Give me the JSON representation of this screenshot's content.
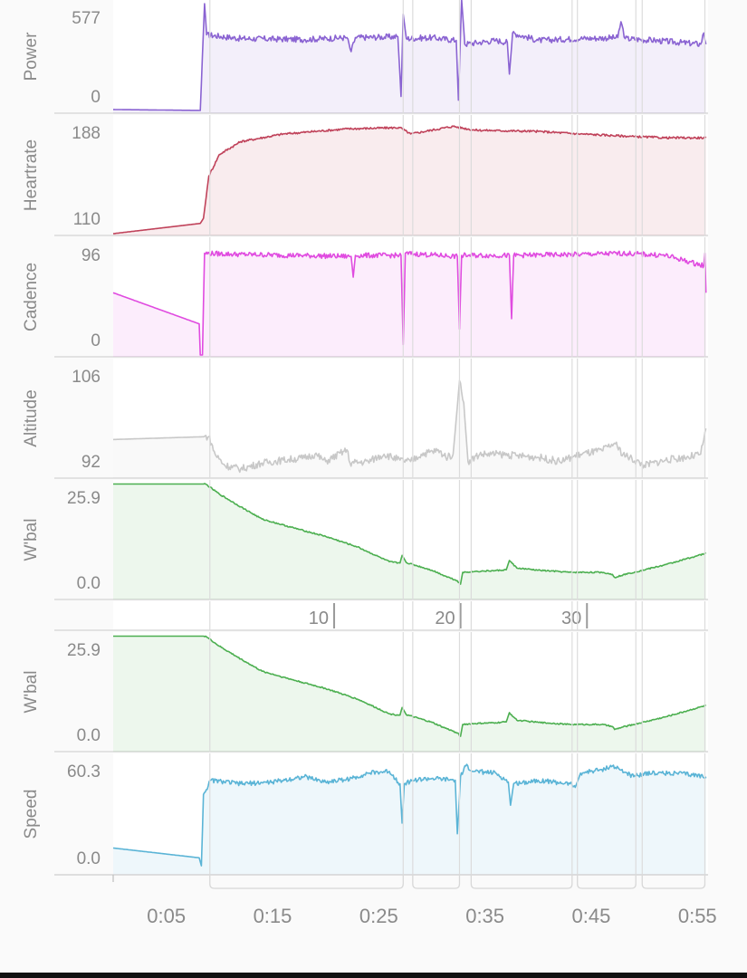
{
  "colors": {
    "power": "#8a63d2",
    "heartrate": "#c0425a",
    "cadence": "#e04be0",
    "altitude": "#c8c8c8",
    "wbal": "#4caf50",
    "speed": "#5ab4d6",
    "axis_text": "#8a8a8a",
    "grid": "#d9d9d9"
  },
  "chart_data": {
    "type": "line",
    "x_axis": {
      "unit": "elapsed time",
      "range": [
        0,
        56
      ],
      "ticks": [
        {
          "x": 5,
          "label": "0:05"
        },
        {
          "x": 15,
          "label": "0:15"
        },
        {
          "x": 25,
          "label": "0:25"
        },
        {
          "x": 35,
          "label": "0:35"
        },
        {
          "x": 45,
          "label": "0:45"
        },
        {
          "x": 55,
          "label": "0:55"
        }
      ]
    },
    "interval_markers": [
      9.1,
      27.3,
      28.2,
      32.6,
      33.7,
      43.2,
      43.7,
      49.2,
      49.8,
      55.7
    ],
    "middle_axis": {
      "range": [
        0,
        56
      ],
      "ticks": [
        {
          "x": 20.8,
          "label": "10"
        },
        {
          "x": 32.7,
          "label": "20"
        },
        {
          "x": 44.6,
          "label": "30"
        }
      ]
    },
    "panels": [
      {
        "id": "power",
        "label": "Power",
        "y_range": [
          0,
          577
        ],
        "y_ticks": [
          "577",
          "0"
        ],
        "fill": true,
        "series": [
          [
            0,
            10
          ],
          [
            8.2,
            5
          ],
          [
            8.6,
            577
          ],
          [
            8.8,
            410
          ],
          [
            12,
            390
          ],
          [
            18,
            385
          ],
          [
            22,
            395
          ],
          [
            22.4,
            320
          ],
          [
            22.8,
            395
          ],
          [
            26.8,
            400
          ],
          [
            27.1,
            80
          ],
          [
            27.3,
            520
          ],
          [
            27.6,
            390
          ],
          [
            30,
            395
          ],
          [
            32.3,
            380
          ],
          [
            32.5,
            60
          ],
          [
            32.8,
            600
          ],
          [
            33.1,
            360
          ],
          [
            36,
            380
          ],
          [
            37.1,
            370
          ],
          [
            37.3,
            200
          ],
          [
            37.6,
            420
          ],
          [
            40,
            380
          ],
          [
            44,
            390
          ],
          [
            47.5,
            395
          ],
          [
            47.8,
            480
          ],
          [
            48.2,
            390
          ],
          [
            51,
            380
          ],
          [
            55.3,
            360
          ],
          [
            55.6,
            420
          ],
          [
            55.8,
            360
          ]
        ],
        "noise": 16
      },
      {
        "id": "heartrate",
        "label": "Heartrate",
        "y_range": [
          110,
          200
        ],
        "y_ticks": [
          "188",
          "110"
        ],
        "fill": true,
        "series": [
          [
            0,
            110
          ],
          [
            8.2,
            118
          ],
          [
            8.5,
            122
          ],
          [
            9,
            155
          ],
          [
            10,
            172
          ],
          [
            12,
            182
          ],
          [
            16,
            188
          ],
          [
            22,
            192
          ],
          [
            27,
            193
          ],
          [
            28,
            188
          ],
          [
            32,
            194
          ],
          [
            34,
            191
          ],
          [
            40,
            190
          ],
          [
            44,
            188
          ],
          [
            49,
            186
          ],
          [
            52,
            185
          ],
          [
            55.8,
            185
          ]
        ],
        "noise": 0.8
      },
      {
        "id": "cadence",
        "label": "Cadence",
        "y_range": [
          0,
          110
        ],
        "y_ticks": [
          "96",
          "0"
        ],
        "fill": true,
        "series": [
          [
            0,
            60
          ],
          [
            8.1,
            30
          ],
          [
            8.2,
            0
          ],
          [
            8.4,
            0
          ],
          [
            8.6,
            98
          ],
          [
            12,
            97
          ],
          [
            22.4,
            95
          ],
          [
            22.6,
            75
          ],
          [
            22.8,
            96
          ],
          [
            27.1,
            96
          ],
          [
            27.3,
            10
          ],
          [
            27.5,
            98
          ],
          [
            32.4,
            95
          ],
          [
            32.6,
            25
          ],
          [
            32.8,
            96
          ],
          [
            37.3,
            96
          ],
          [
            37.5,
            35
          ],
          [
            37.7,
            96
          ],
          [
            44,
            97
          ],
          [
            48,
            98
          ],
          [
            52,
            96
          ],
          [
            55.6,
            86
          ],
          [
            55.7,
            98
          ],
          [
            55.8,
            60
          ]
        ],
        "noise": 2.4
      },
      {
        "id": "altitude",
        "label": "Altitude",
        "y_range": [
          91,
          106.5
        ],
        "y_ticks": [
          "106",
          "92"
        ],
        "fill": true,
        "series": [
          [
            0,
            96
          ],
          [
            9,
            96.4
          ],
          [
            9.6,
            94
          ],
          [
            10.5,
            92.5
          ],
          [
            12,
            92
          ],
          [
            14,
            92.8
          ],
          [
            16,
            93.2
          ],
          [
            18,
            93.5
          ],
          [
            19,
            94
          ],
          [
            20,
            93
          ],
          [
            22,
            94.6
          ],
          [
            22.3,
            92.8
          ],
          [
            24,
            93
          ],
          [
            25.5,
            94
          ],
          [
            27,
            93.2
          ],
          [
            28,
            93
          ],
          [
            29,
            94
          ],
          [
            30.5,
            94.5
          ],
          [
            31.5,
            93.6
          ],
          [
            32,
            94
          ],
          [
            32.4,
            100.5
          ],
          [
            32.6,
            104
          ],
          [
            33,
            101
          ],
          [
            33.4,
            93
          ],
          [
            34.5,
            94
          ],
          [
            36.5,
            94
          ],
          [
            38,
            93.8
          ],
          [
            40,
            93.6
          ],
          [
            42,
            93
          ],
          [
            44,
            94
          ],
          [
            46,
            94.5
          ],
          [
            47.2,
            95.5
          ],
          [
            48,
            94
          ],
          [
            50,
            92.5
          ],
          [
            52,
            93.2
          ],
          [
            54,
            93.6
          ],
          [
            55.3,
            94
          ],
          [
            55.6,
            96
          ],
          [
            55.8,
            97.5
          ]
        ],
        "noise": 0.5
      },
      {
        "id": "wbal_1",
        "label": "W'bal",
        "y_range": [
          -1,
          26
        ],
        "y_ticks": [
          "25.9",
          "0.0"
        ],
        "fill": true,
        "series": [
          [
            0,
            25.9
          ],
          [
            8.7,
            25.9
          ],
          [
            10,
            23.5
          ],
          [
            12,
            20.5
          ],
          [
            14,
            17.6
          ],
          [
            17,
            15.5
          ],
          [
            20,
            13.5
          ],
          [
            23,
            11
          ],
          [
            26,
            7.5
          ],
          [
            27,
            7.2
          ],
          [
            27.2,
            9
          ],
          [
            27.6,
            7.3
          ],
          [
            30,
            5.5
          ],
          [
            31,
            4.4
          ],
          [
            32.4,
            3
          ],
          [
            32.7,
            2.2
          ],
          [
            32.9,
            5
          ],
          [
            34,
            5.2
          ],
          [
            36,
            5.4
          ],
          [
            37,
            5.6
          ],
          [
            37.3,
            7.8
          ],
          [
            38,
            6
          ],
          [
            40,
            5.5
          ],
          [
            43,
            5
          ],
          [
            46,
            5
          ],
          [
            47,
            4.5
          ],
          [
            47.2,
            3.8
          ],
          [
            48,
            4.4
          ],
          [
            52,
            6.8
          ],
          [
            55.8,
            9.5
          ]
        ],
        "noise": 0.15
      },
      {
        "id": "wbal_2",
        "label": "W'bal",
        "y_range": [
          -1,
          26
        ],
        "y_ticks": [
          "25.9",
          "0.0"
        ],
        "fill": true,
        "series": [
          [
            0,
            25.9
          ],
          [
            8.7,
            25.9
          ],
          [
            10,
            23.5
          ],
          [
            12,
            20.5
          ],
          [
            14,
            17.6
          ],
          [
            17,
            15.5
          ],
          [
            20,
            13.5
          ],
          [
            23,
            11
          ],
          [
            26,
            7.5
          ],
          [
            27,
            7.2
          ],
          [
            27.2,
            9
          ],
          [
            27.6,
            7.3
          ],
          [
            30,
            5.5
          ],
          [
            31,
            4.4
          ],
          [
            32.4,
            3
          ],
          [
            32.7,
            2.2
          ],
          [
            32.9,
            5
          ],
          [
            34,
            5.2
          ],
          [
            36,
            5.4
          ],
          [
            37,
            5.6
          ],
          [
            37.3,
            7.8
          ],
          [
            38,
            6
          ],
          [
            40,
            5.5
          ],
          [
            43,
            5
          ],
          [
            46,
            5
          ],
          [
            47,
            4.5
          ],
          [
            47.2,
            3.8
          ],
          [
            48,
            4.4
          ],
          [
            52,
            6.8
          ],
          [
            55.8,
            9.5
          ]
        ],
        "noise": 0.15
      },
      {
        "id": "speed",
        "label": "Speed",
        "y_range": [
          -2,
          63
        ],
        "y_ticks": [
          "60.3",
          "0.0"
        ],
        "fill": true,
        "series": [
          [
            0,
            12
          ],
          [
            8.1,
            6.5
          ],
          [
            8.3,
            2
          ],
          [
            8.5,
            42
          ],
          [
            9.2,
            50
          ],
          [
            12,
            48
          ],
          [
            15,
            49
          ],
          [
            18,
            52
          ],
          [
            20,
            49
          ],
          [
            22.5,
            51
          ],
          [
            24,
            54
          ],
          [
            26,
            55
          ],
          [
            27,
            48
          ],
          [
            27.2,
            26
          ],
          [
            27.4,
            48
          ],
          [
            28.2,
            50
          ],
          [
            30,
            51
          ],
          [
            32.2,
            50
          ],
          [
            32.4,
            20
          ],
          [
            32.7,
            52
          ],
          [
            33.2,
            58
          ],
          [
            34,
            55
          ],
          [
            36,
            54
          ],
          [
            37.2,
            49
          ],
          [
            37.4,
            36
          ],
          [
            37.7,
            48
          ],
          [
            40,
            50
          ],
          [
            43,
            48
          ],
          [
            43.5,
            46
          ],
          [
            44,
            54
          ],
          [
            46,
            56
          ],
          [
            47,
            58
          ],
          [
            49,
            52
          ],
          [
            50,
            54
          ],
          [
            53,
            54
          ],
          [
            55.8,
            52
          ]
        ],
        "noise": 1.3
      }
    ]
  }
}
